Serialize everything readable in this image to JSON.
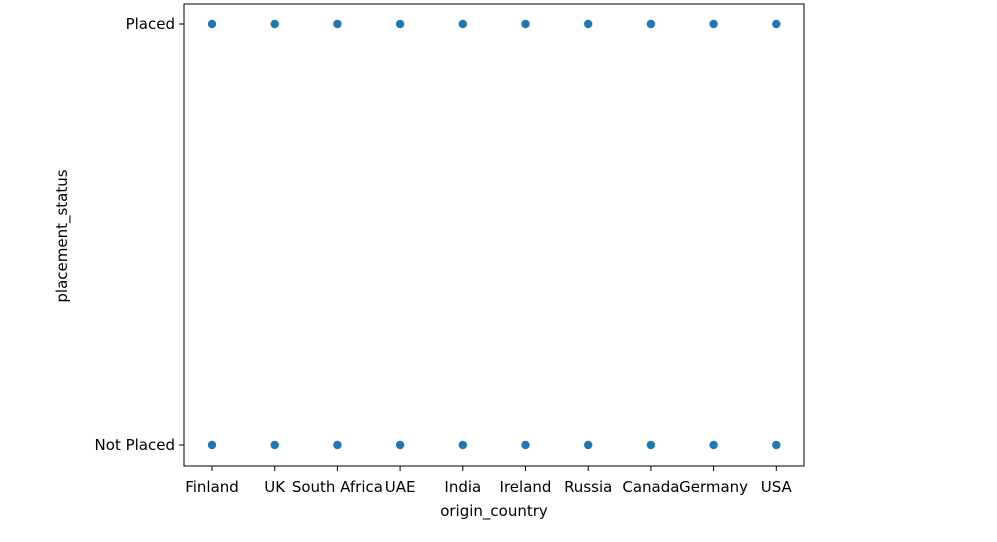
{
  "chart_data": {
    "type": "scatter",
    "title": "",
    "xlabel": "origin_country",
    "ylabel": "placement_status",
    "x_categories": [
      "Finland",
      "UK",
      "South Africa",
      "UAE",
      "India",
      "Ireland",
      "Russia",
      "Canada",
      "Germany",
      "USA"
    ],
    "y_categories": [
      "Placed",
      "Not Placed"
    ],
    "points": [
      {
        "x": "Finland",
        "y": "Placed"
      },
      {
        "x": "UK",
        "y": "Placed"
      },
      {
        "x": "South Africa",
        "y": "Placed"
      },
      {
        "x": "UAE",
        "y": "Placed"
      },
      {
        "x": "India",
        "y": "Placed"
      },
      {
        "x": "Ireland",
        "y": "Placed"
      },
      {
        "x": "Russia",
        "y": "Placed"
      },
      {
        "x": "Canada",
        "y": "Placed"
      },
      {
        "x": "Germany",
        "y": "Placed"
      },
      {
        "x": "USA",
        "y": "Placed"
      },
      {
        "x": "Finland",
        "y": "Not Placed"
      },
      {
        "x": "UK",
        "y": "Not Placed"
      },
      {
        "x": "South Africa",
        "y": "Not Placed"
      },
      {
        "x": "UAE",
        "y": "Not Placed"
      },
      {
        "x": "India",
        "y": "Not Placed"
      },
      {
        "x": "Ireland",
        "y": "Not Placed"
      },
      {
        "x": "Russia",
        "y": "Not Placed"
      },
      {
        "x": "Canada",
        "y": "Not Placed"
      },
      {
        "x": "Germany",
        "y": "Not Placed"
      },
      {
        "x": "USA",
        "y": "Not Placed"
      }
    ],
    "marker_color": "#1f77b4",
    "grid": false,
    "legend": "none"
  }
}
